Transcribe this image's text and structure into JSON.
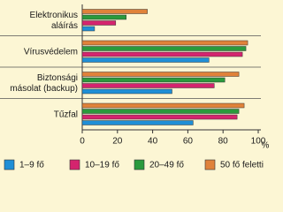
{
  "chart_data": {
    "type": "bar",
    "orientation": "horizontal",
    "categories": [
      [
        "Elektronikus",
        "aláírás"
      ],
      [
        "Vírusvédelem"
      ],
      [
        "Biztonsági",
        "másolat (backup)"
      ],
      [
        "Tűzfal"
      ]
    ],
    "series": [
      {
        "name": "1–9 fő",
        "color": "#1f8fd6",
        "values": [
          7,
          72,
          51,
          63
        ]
      },
      {
        "name": "10–19 fő",
        "color": "#d4246e",
        "values": [
          19,
          91,
          75,
          88
        ]
      },
      {
        "name": "20–49 fő",
        "color": "#2a9a3c",
        "values": [
          25,
          93,
          81,
          89
        ]
      },
      {
        "name": "50 fő feletti",
        "color": "#e0823a",
        "values": [
          37,
          94,
          89,
          92
        ]
      }
    ],
    "xlabel": "%",
    "xlim": [
      0,
      100
    ],
    "xticks": [
      0,
      20,
      40,
      60,
      80,
      100
    ],
    "grid": false
  }
}
